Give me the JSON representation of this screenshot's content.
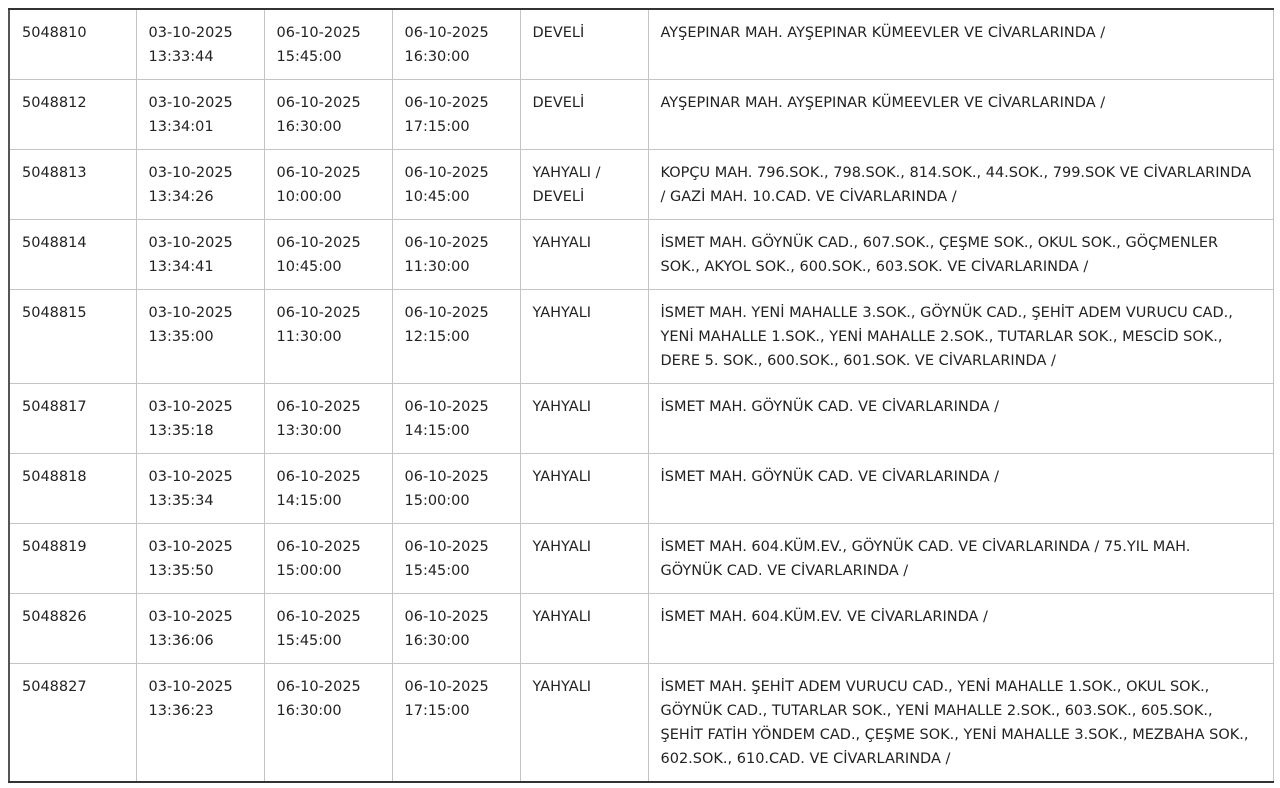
{
  "table": {
    "rows": [
      [
        "5048810",
        "03-10-2025 13:33:44",
        "06-10-2025 15:45:00",
        "06-10-2025 16:30:00",
        "DEVELİ",
        "AYŞEPINAR MAH. AYŞEPINAR KÜMEEVLER VE CİVARLARINDA /"
      ],
      [
        "5048812",
        "03-10-2025 13:34:01",
        "06-10-2025 16:30:00",
        "06-10-2025 17:15:00",
        "DEVELİ",
        "AYŞEPINAR MAH. AYŞEPINAR KÜMEEVLER VE CİVARLARINDA /"
      ],
      [
        "5048813",
        "03-10-2025 13:34:26",
        "06-10-2025 10:00:00",
        "06-10-2025 10:45:00",
        "YAHYALI / DEVELİ",
        "KOPÇU MAH. 796.SOK., 798.SOK., 814.SOK., 44.SOK., 799.SOK VE CİVARLARINDA / GAZİ MAH. 10.CAD. VE CİVARLARINDA /"
      ],
      [
        "5048814",
        "03-10-2025 13:34:41",
        "06-10-2025 10:45:00",
        "06-10-2025 11:30:00",
        "YAHYALI",
        "İSMET MAH. GÖYNÜK CAD., 607.SOK., ÇEŞME SOK., OKUL SOK., GÖÇMENLER SOK., AKYOL SOK., 600.SOK., 603.SOK. VE CİVARLARINDA /"
      ],
      [
        "5048815",
        "03-10-2025 13:35:00",
        "06-10-2025 11:30:00",
        "06-10-2025 12:15:00",
        "YAHYALI",
        "İSMET MAH. YENİ MAHALLE 3.SOK., GÖYNÜK CAD., ŞEHİT ADEM VURUCU CAD., YENİ MAHALLE 1.SOK., YENİ MAHALLE 2.SOK., TUTARLAR SOK., MESCİD SOK., DERE 5. SOK., 600.SOK., 601.SOK. VE CİVARLARINDA /"
      ],
      [
        "5048817",
        "03-10-2025 13:35:18",
        "06-10-2025 13:30:00",
        "06-10-2025 14:15:00",
        "YAHYALI",
        "İSMET MAH. GÖYNÜK CAD. VE CİVARLARINDA /"
      ],
      [
        "5048818",
        "03-10-2025 13:35:34",
        "06-10-2025 14:15:00",
        "06-10-2025 15:00:00",
        "YAHYALI",
        "İSMET MAH. GÖYNÜK CAD. VE CİVARLARINDA /"
      ],
      [
        "5048819",
        "03-10-2025 13:35:50",
        "06-10-2025 15:00:00",
        "06-10-2025 15:45:00",
        "YAHYALI",
        "İSMET MAH. 604.KÜM.EV., GÖYNÜK CAD. VE CİVARLARINDA / 75.YIL MAH. GÖYNÜK CAD. VE CİVARLARINDA /"
      ],
      [
        "5048826",
        "03-10-2025 13:36:06",
        "06-10-2025 15:45:00",
        "06-10-2025 16:30:00",
        "YAHYALI",
        "İSMET MAH. 604.KÜM.EV. VE CİVARLARINDA /"
      ],
      [
        "5048827",
        "03-10-2025 13:36:23",
        "06-10-2025 16:30:00",
        "06-10-2025 17:15:00",
        "YAHYALI",
        "İSMET MAH. ŞEHİT ADEM VURUCU CAD., YENİ MAHALLE 1.SOK., OKUL SOK., GÖYNÜK CAD., TUTARLAR SOK., YENİ MAHALLE 2.SOK., 603.SOK., 605.SOK., ŞEHİT FATİH YÖNDEM CAD., ÇEŞME SOK., YENİ MAHALLE 3.SOK., MEZBAHA SOK., 602.SOK., 610.CAD. VE CİVARLARINDA /"
      ]
    ]
  }
}
